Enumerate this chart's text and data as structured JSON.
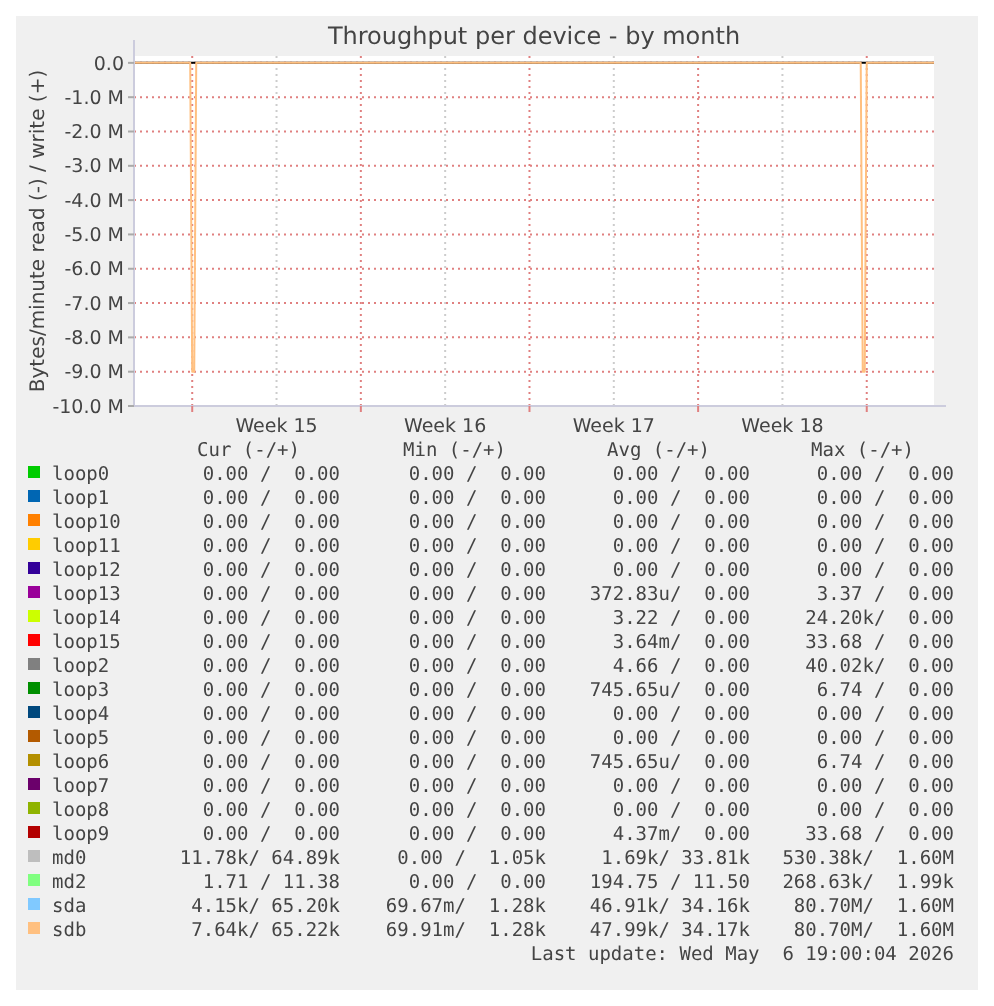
{
  "chart_data": {
    "type": "line",
    "title": "Throughput per device - by month",
    "ylabel": "Bytes/minute read (-) / write (+)",
    "x": [
      "2026-04-03T14:00",
      "2026-04-05T22:00",
      "2026-04-06T00:00",
      "2026-04-06T02:00",
      "2026-04-06T04:00",
      "2026-05-03T18:00",
      "2026-05-03T20:00",
      "2026-05-03T22:00",
      "2026-05-04T00:00",
      "2026-05-06T19:00"
    ],
    "xlim": [
      "2026-04-03T14:00",
      "2026-05-06T19:00"
    ],
    "xticks": [
      {
        "value": "2026-04-06",
        "label": null
      },
      {
        "value": "2026-04-09T12:00",
        "label": "Week 15"
      },
      {
        "value": "2026-04-13",
        "label": null
      },
      {
        "value": "2026-04-16T12:00",
        "label": "Week 16"
      },
      {
        "value": "2026-04-20",
        "label": null
      },
      {
        "value": "2026-04-23T12:00",
        "label": "Week 17"
      },
      {
        "value": "2026-04-27",
        "label": null
      },
      {
        "value": "2026-04-30T12:00",
        "label": "Week 18"
      },
      {
        "value": "2026-05-04",
        "label": null
      }
    ],
    "ylim": [
      -10000000,
      200000
    ],
    "yticks": [
      {
        "value": 0,
        "label": "0.0"
      },
      {
        "value": -1000000,
        "label": "-1.0 M"
      },
      {
        "value": -2000000,
        "label": "-2.0 M"
      },
      {
        "value": -3000000,
        "label": "-3.0 M"
      },
      {
        "value": -4000000,
        "label": "-4.0 M"
      },
      {
        "value": -5000000,
        "label": "-5.0 M"
      },
      {
        "value": -6000000,
        "label": "-6.0 M"
      },
      {
        "value": -7000000,
        "label": "-7.0 M"
      },
      {
        "value": -8000000,
        "label": "-8.0 M"
      },
      {
        "value": -9000000,
        "label": "-9.0 M"
      },
      {
        "value": -10000000,
        "label": "-10.0 M"
      }
    ],
    "grid": true,
    "legend": "bottom",
    "marker": "none",
    "line_style": "solid",
    "series": [
      {
        "name": "loop0",
        "color": "#00cc00",
        "values": [
          null,
          null,
          null,
          null,
          null,
          null,
          null,
          null,
          null,
          null
        ]
      },
      {
        "name": "loop1",
        "color": "#0066b3",
        "values": [
          null,
          null,
          null,
          null,
          null,
          null,
          null,
          null,
          null,
          null
        ]
      },
      {
        "name": "loop10",
        "color": "#ff8000",
        "values": [
          null,
          null,
          null,
          null,
          null,
          null,
          null,
          null,
          null,
          null
        ]
      },
      {
        "name": "loop11",
        "color": "#ffcc00",
        "values": [
          null,
          null,
          null,
          null,
          null,
          null,
          null,
          null,
          null,
          null
        ]
      },
      {
        "name": "loop12",
        "color": "#330099",
        "values": [
          null,
          null,
          null,
          null,
          null,
          null,
          null,
          null,
          null,
          null
        ]
      },
      {
        "name": "loop13",
        "color": "#990099",
        "values": [
          null,
          null,
          null,
          null,
          null,
          null,
          null,
          null,
          null,
          null
        ]
      },
      {
        "name": "loop14",
        "color": "#ccff00",
        "values": [
          null,
          null,
          null,
          null,
          null,
          null,
          null,
          null,
          null,
          null
        ]
      },
      {
        "name": "loop15",
        "color": "#ff0000",
        "values": [
          null,
          null,
          null,
          null,
          null,
          null,
          null,
          null,
          null,
          null
        ]
      },
      {
        "name": "loop2",
        "color": "#808080",
        "values": [
          null,
          null,
          null,
          null,
          null,
          null,
          null,
          null,
          null,
          null
        ]
      },
      {
        "name": "loop3",
        "color": "#008f00",
        "values": [
          null,
          null,
          null,
          null,
          null,
          null,
          null,
          null,
          null,
          null
        ]
      },
      {
        "name": "loop4",
        "color": "#00487d",
        "values": [
          null,
          null,
          null,
          null,
          null,
          null,
          null,
          null,
          null,
          null
        ]
      },
      {
        "name": "loop5",
        "color": "#b35a00",
        "values": [
          null,
          null,
          null,
          null,
          null,
          null,
          null,
          null,
          null,
          null
        ]
      },
      {
        "name": "loop6",
        "color": "#b38f00",
        "values": [
          null,
          null,
          null,
          null,
          null,
          null,
          null,
          null,
          null,
          null
        ]
      },
      {
        "name": "loop7",
        "color": "#6b006b",
        "values": [
          null,
          null,
          null,
          null,
          null,
          null,
          null,
          null,
          null,
          null
        ]
      },
      {
        "name": "loop8",
        "color": "#8fb300",
        "values": [
          null,
          null,
          null,
          null,
          null,
          null,
          null,
          null,
          null,
          null
        ]
      },
      {
        "name": "loop9",
        "color": "#b30000",
        "values": [
          null,
          null,
          null,
          null,
          null,
          null,
          null,
          null,
          null,
          null
        ]
      },
      {
        "name": "md0",
        "color": "#bebebe",
        "values": [
          null,
          null,
          null,
          null,
          null,
          null,
          null,
          null,
          null,
          null
        ]
      },
      {
        "name": "md2",
        "color": "#80ff80",
        "values": [
          null,
          null,
          null,
          null,
          null,
          null,
          null,
          null,
          null,
          null
        ]
      },
      {
        "name": "sda",
        "color": "#80c9ff",
        "values": [
          null,
          null,
          null,
          null,
          null,
          null,
          null,
          null,
          null,
          null
        ]
      },
      {
        "name": "sdb",
        "color": "#ffc080",
        "values": [
          0,
          0,
          -9000000,
          -9000000,
          0,
          0,
          -9000000,
          -9000000,
          0,
          0
        ]
      }
    ],
    "annotations": [
      "Cur (-/+)",
      "Min (-/+)",
      "Avg (-/+)",
      "Max (-/+)",
      "0.00 /  0.00",
      "0.00 /  0.00",
      "0.00 /  0.00",
      "0.00 /  0.00",
      "0.00 /  0.00",
      "0.00 /  0.00",
      "0.00 /  0.00",
      "0.00 /  0.00",
      "0.00 /  0.00",
      "0.00 /  0.00",
      "0.00 /  0.00",
      "0.00 /  0.00",
      "0.00 /  0.00",
      "0.00 /  0.00",
      "0.00 /  0.00",
      "0.00 /  0.00",
      "0.00 /  0.00",
      "0.00 /  0.00",
      "0.00 /  0.00",
      "0.00 /  0.00",
      "0.00 /  0.00",
      "0.00 /  0.00",
      "372.83u/  0.00",
      "3.37 /  0.00",
      "0.00 /  0.00",
      "0.00 /  0.00",
      "3.22 /  0.00",
      "24.20k/  0.00",
      "0.00 /  0.00",
      "0.00 /  0.00",
      "3.64m/  0.00",
      "33.68 /  0.00",
      "0.00 /  0.00",
      "0.00 /  0.00",
      "4.66 /  0.00",
      "40.02k/  0.00",
      "0.00 /  0.00",
      "0.00 /  0.00",
      "745.65u/  0.00",
      "6.74 /  0.00",
      "0.00 /  0.00",
      "0.00 /  0.00",
      "0.00 /  0.00",
      "0.00 /  0.00",
      "0.00 /  0.00",
      "0.00 /  0.00",
      "0.00 /  0.00",
      "0.00 /  0.00",
      "0.00 /  0.00",
      "0.00 /  0.00",
      "745.65u/  0.00",
      "6.74 /  0.00",
      "0.00 /  0.00",
      "0.00 /  0.00",
      "0.00 /  0.00",
      "0.00 /  0.00",
      "0.00 /  0.00",
      "0.00 /  0.00",
      "0.00 /  0.00",
      "0.00 /  0.00",
      "0.00 /  0.00",
      "0.00 /  0.00",
      "4.37m/  0.00",
      "33.68 /  0.00",
      "11.78k/ 64.89k",
      "0.00 /  1.05k",
      "1.69k/ 33.81k",
      "530.38k/  1.60M",
      "1.71 / 11.38",
      "0.00 /  0.00",
      "194.75 / 11.50",
      "268.63k/  1.99k",
      "4.15k/ 65.20k",
      "69.67m/  1.28k",
      "46.91k/ 34.16k",
      "80.70M/  1.60M",
      "7.64k/ 65.22k",
      "69.91m/  1.28k",
      "47.99k/ 34.17k",
      "80.70M/  1.60M",
      "Last update: Wed May  6 19:00:04 2026"
    ]
  }
}
